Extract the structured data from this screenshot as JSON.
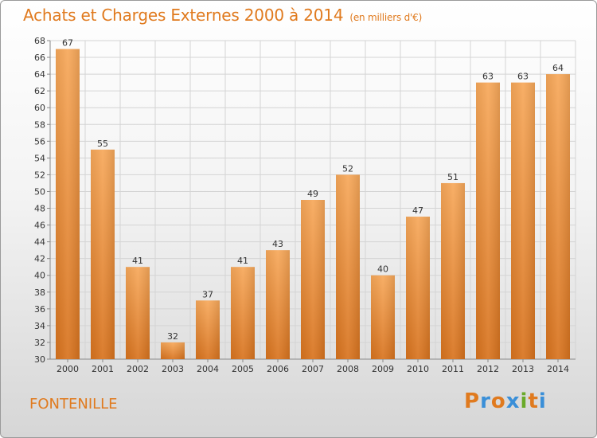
{
  "header": {
    "title": "Achats et Charges Externes 2000 à 2014",
    "unit": "(en milliers d'€)"
  },
  "footer": {
    "commune": "FONTENILLE",
    "logo_text": "Proxiti"
  },
  "colors": {
    "accent": "#e07a1e",
    "bar_top": "#f7a85a",
    "bar_bottom": "#d8731e",
    "logo": [
      "#e07a1e",
      "#3a8fd8",
      "#e07a1e",
      "#3a8fd8",
      "#6aaa2a",
      "#e07a1e",
      "#3a8fd8"
    ]
  },
  "chart_data": {
    "type": "bar",
    "title": "Achats et Charges Externes 2000 à 2014",
    "categories": [
      "2000",
      "2001",
      "2002",
      "2003",
      "2004",
      "2005",
      "2006",
      "2007",
      "2008",
      "2009",
      "2010",
      "2011",
      "2012",
      "2013",
      "2014"
    ],
    "values": [
      67,
      55,
      41,
      32,
      37,
      41,
      43,
      49,
      52,
      40,
      47,
      51,
      63,
      63,
      64
    ],
    "ylim": [
      30,
      68
    ],
    "yticks": [
      30,
      32,
      34,
      36,
      38,
      40,
      42,
      44,
      46,
      48,
      50,
      52,
      54,
      56,
      58,
      60,
      62,
      64,
      66,
      68
    ],
    "grid": true,
    "xlabel": "",
    "ylabel": ""
  }
}
